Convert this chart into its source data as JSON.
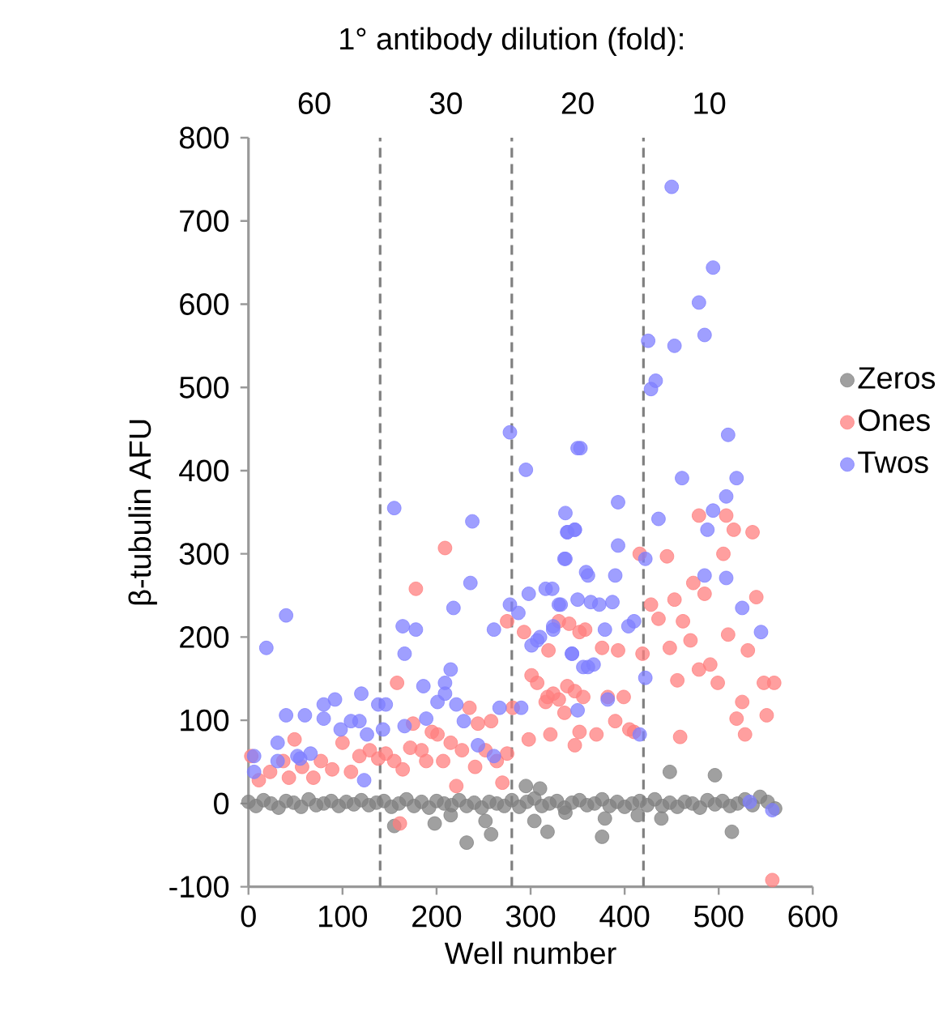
{
  "chart_data": {
    "type": "scatter",
    "title": "1° antibody dilution (fold):",
    "xlabel": "Well number",
    "ylabel": "β-tubulin AFU",
    "xlim": [
      0,
      600
    ],
    "xticks": [
      0,
      100,
      200,
      300,
      400,
      500,
      600
    ],
    "ylim": [
      -100,
      800
    ],
    "yticks": [
      -100,
      0,
      100,
      200,
      300,
      400,
      500,
      600,
      700,
      800
    ],
    "grid": false,
    "legend": "right",
    "marker": "circle",
    "ref_lines": [
      {
        "axis": "x",
        "value": 140,
        "color": "#808080",
        "line_style": "dashed"
      },
      {
        "axis": "x",
        "value": 280,
        "color": "#808080",
        "line_style": "dashed"
      },
      {
        "axis": "x",
        "value": 420,
        "color": "#808080",
        "line_style": "dashed"
      }
    ],
    "annotations": [
      "60",
      "30",
      "20",
      "10"
    ],
    "series": [
      {
        "name": "Zeros",
        "color": "#808080",
        "x": [
          0,
          8,
          16,
          24,
          32,
          40,
          48,
          56,
          64,
          72,
          80,
          88,
          96,
          104,
          112,
          120,
          128,
          136,
          144,
          152,
          160,
          168,
          176,
          184,
          192,
          200,
          208,
          216,
          224,
          232,
          240,
          248,
          256,
          264,
          272,
          280,
          288,
          296,
          304,
          312,
          320,
          328,
          336,
          344,
          352,
          360,
          368,
          376,
          384,
          392,
          400,
          408,
          416,
          424,
          432,
          440,
          448,
          456,
          464,
          472,
          480,
          488,
          496,
          504,
          512,
          520,
          528,
          536,
          544,
          552,
          560,
          155,
          198,
          232,
          258,
          252,
          295,
          310,
          304,
          318,
          215,
          376,
          448,
          496,
          514,
          337,
          379,
          414,
          439
        ],
        "values": [
          2,
          -3,
          4,
          0,
          -5,
          3,
          1,
          -4,
          5,
          -2,
          0,
          3,
          -3,
          2,
          -1,
          4,
          -2,
          1,
          3,
          -4,
          0,
          5,
          -3,
          2,
          -5,
          3,
          0,
          -2,
          4,
          -3,
          1,
          -5,
          2,
          0,
          -3,
          4,
          -4,
          2,
          6,
          -3,
          0,
          3,
          -5,
          1,
          4,
          -2,
          0,
          5,
          -3,
          2,
          -4,
          0,
          3,
          -2,
          5,
          -3,
          1,
          -4,
          2,
          0,
          -5,
          4,
          -1,
          3,
          -3,
          0,
          5,
          -2,
          8,
          2,
          -6,
          -27,
          -24,
          -47,
          -37,
          -21,
          21,
          18,
          -21,
          -34,
          -14,
          -40,
          38,
          34,
          -34,
          -11,
          -18,
          -14,
          -18
        ]
      },
      {
        "name": "Ones",
        "color": "#ff7f7f",
        "x": [
          3,
          11,
          23,
          37,
          49,
          43,
          57,
          69,
          77,
          89,
          100,
          109,
          118,
          129,
          138,
          146,
          155,
          158,
          164,
          161,
          172,
          175,
          178,
          184,
          189,
          195,
          201,
          207,
          209,
          215,
          221,
          227,
          235,
          241,
          244,
          252,
          258,
          264,
          270,
          275,
          275,
          281,
          293,
          298,
          301,
          307,
          316,
          319,
          324,
          330,
          336,
          347,
          352,
          352,
          318,
          321,
          330,
          339,
          341,
          347,
          356,
          358,
          370,
          376,
          382,
          390,
          393,
          399,
          405,
          410,
          416,
          419,
          428,
          436,
          445,
          448,
          453,
          459,
          456,
          462,
          470,
          473,
          479,
          479,
          485,
          491,
          499,
          505,
          508,
          510,
          516,
          519,
          528,
          531,
          536,
          540,
          548,
          551,
          559,
          557,
          525
        ],
        "values": [
          57,
          28,
          38,
          51,
          77,
          31,
          44,
          31,
          51,
          41,
          73,
          38,
          57,
          64,
          54,
          60,
          51,
          145,
          41,
          -24,
          67,
          96,
          258,
          64,
          51,
          86,
          83,
          51,
          307,
          73,
          21,
          64,
          115,
          44,
          96,
          64,
          99,
          51,
          25,
          60,
          219,
          115,
          206,
          77,
          154,
          145,
          122,
          184,
          132,
          219,
          109,
          135,
          86,
          206,
          128,
          83,
          125,
          141,
          216,
          70,
          128,
          209,
          83,
          187,
          128,
          99,
          184,
          128,
          89,
          86,
          300,
          180,
          239,
          222,
          297,
          187,
          245,
          80,
          148,
          219,
          196,
          265,
          161,
          346,
          252,
          167,
          145,
          300,
          346,
          203,
          329,
          102,
          83,
          184,
          326,
          248,
          145,
          106,
          145,
          -92,
          122
        ]
      },
      {
        "name": "Twos",
        "color": "#7f7fff",
        "x": [
          6,
          6,
          19,
          31,
          40,
          31,
          40,
          52,
          60,
          55,
          66,
          80,
          80,
          92,
          98,
          109,
          120,
          118,
          126,
          123,
          138,
          146,
          143,
          155,
          164,
          178,
          166,
          166,
          186,
          189,
          201,
          209,
          215,
          209,
          218,
          236,
          238,
          221,
          229,
          244,
          261,
          261,
          267,
          278,
          278,
          287,
          290,
          295,
          298,
          301,
          310,
          316,
          324,
          330,
          336,
          339,
          344,
          347,
          350,
          356,
          359,
          350,
          307,
          324,
          323,
          332,
          337,
          337,
          339,
          347,
          353,
          344,
          350,
          361,
          361,
          367,
          364,
          373,
          379,
          387,
          390,
          382,
          393,
          393,
          404,
          410,
          416,
          422,
          422,
          425,
          428,
          433,
          436,
          453,
          450,
          461,
          479,
          485,
          494,
          485,
          494,
          508,
          508,
          488,
          510,
          519,
          525,
          545,
          533,
          557
        ],
        "values": [
          57,
          38,
          187,
          73,
          226,
          51,
          106,
          57,
          106,
          54,
          60,
          102,
          119,
          125,
          89,
          99,
          132,
          99,
          83,
          28,
          119,
          119,
          89,
          355,
          213,
          209,
          180,
          93,
          141,
          102,
          122,
          145,
          161,
          132,
          235,
          265,
          339,
          119,
          99,
          70,
          57,
          209,
          115,
          446,
          239,
          229,
          115,
          401,
          252,
          190,
          200,
          258,
          213,
          239,
          294,
          326,
          180,
          329,
          427,
          164,
          278,
          112,
          196,
          209,
          258,
          239,
          294,
          349,
          326,
          329,
          427,
          180,
          245,
          274,
          164,
          167,
          242,
          239,
          209,
          242,
          274,
          125,
          310,
          362,
          213,
          219,
          83,
          151,
          294,
          556,
          498,
          508,
          342,
          550,
          741,
          391,
          602,
          563,
          644,
          274,
          352,
          369,
          271,
          329,
          443,
          391,
          235,
          206,
          2,
          -8
        ]
      }
    ]
  }
}
